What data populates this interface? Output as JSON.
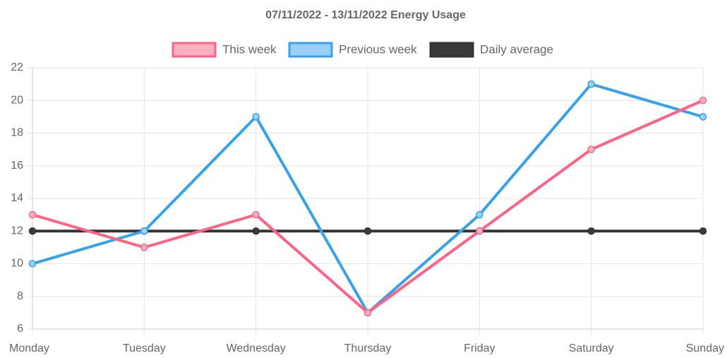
{
  "chart_data": {
    "type": "line",
    "title": "07/11/2022 - 13/11/2022 Energy Usage",
    "xlabel": "",
    "ylabel": "",
    "categories": [
      "Monday",
      "Tuesday",
      "Wednesday",
      "Thursday",
      "Friday",
      "Saturday",
      "Sunday"
    ],
    "ylim": [
      6,
      22
    ],
    "y_ticks": [
      6,
      8,
      10,
      12,
      14,
      16,
      18,
      20,
      22
    ],
    "grid": true,
    "legend_position": "top",
    "series": [
      {
        "name": "This week",
        "values": [
          13,
          11,
          13,
          7,
          12,
          17,
          20
        ],
        "color": "#ff6384",
        "fill_color": "#ffb1c1"
      },
      {
        "name": "Previous week",
        "values": [
          10,
          12,
          19,
          7,
          13,
          21,
          19
        ],
        "color": "#36a2eb",
        "fill_color": "#9ad0f5"
      },
      {
        "name": "Daily average",
        "values": [
          12,
          12,
          12,
          12,
          12,
          12,
          12
        ],
        "color": "#333333",
        "fill_color": "#3b3b3b"
      }
    ]
  }
}
